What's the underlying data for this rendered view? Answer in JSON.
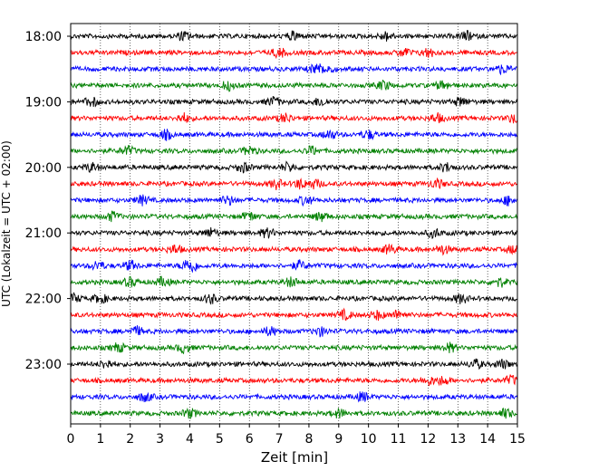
{
  "chart_data": {
    "type": "line",
    "title": "",
    "xlabel": "Zeit  [min]",
    "ylabel": "UTC (Lokalzeit = UTC + 02:00)",
    "xlim": [
      0,
      15
    ],
    "xticks": [
      0,
      1,
      2,
      3,
      4,
      5,
      6,
      7,
      8,
      9,
      10,
      11,
      12,
      13,
      14,
      15
    ],
    "ytick_labels": [
      "18:00",
      "19:00",
      "20:00",
      "21:00",
      "22:00",
      "23:00"
    ],
    "grid": "vertical dotted",
    "trace_interval_min": 15,
    "trace_colors": [
      "#000000",
      "#ff0000",
      "#0000ff",
      "#008000"
    ],
    "traces": [
      {
        "start": "18:00",
        "color": "#000000"
      },
      {
        "start": "18:15",
        "color": "#ff0000"
      },
      {
        "start": "18:30",
        "color": "#0000ff"
      },
      {
        "start": "18:45",
        "color": "#008000"
      },
      {
        "start": "19:00",
        "color": "#000000"
      },
      {
        "start": "19:15",
        "color": "#ff0000"
      },
      {
        "start": "19:30",
        "color": "#0000ff"
      },
      {
        "start": "19:45",
        "color": "#008000"
      },
      {
        "start": "20:00",
        "color": "#000000"
      },
      {
        "start": "20:15",
        "color": "#ff0000"
      },
      {
        "start": "20:30",
        "color": "#0000ff"
      },
      {
        "start": "20:45",
        "color": "#008000"
      },
      {
        "start": "21:00",
        "color": "#000000"
      },
      {
        "start": "21:15",
        "color": "#ff0000"
      },
      {
        "start": "21:30",
        "color": "#0000ff"
      },
      {
        "start": "21:45",
        "color": "#008000"
      },
      {
        "start": "22:00",
        "color": "#000000"
      },
      {
        "start": "22:15",
        "color": "#ff0000"
      },
      {
        "start": "22:30",
        "color": "#0000ff"
      },
      {
        "start": "22:45",
        "color": "#008000"
      },
      {
        "start": "23:00",
        "color": "#000000"
      },
      {
        "start": "23:15",
        "color": "#ff0000"
      },
      {
        "start": "23:30",
        "color": "#0000ff"
      },
      {
        "start": "23:45",
        "color": "#008000"
      }
    ],
    "bursts": [
      {
        "trace": "18:00",
        "x": [
          3.8,
          7.5,
          10.6,
          13.3
        ]
      },
      {
        "trace": "18:15",
        "x": [
          7.0,
          11.2,
          12.0
        ]
      },
      {
        "trace": "18:30",
        "x": [
          8.2,
          8.6,
          14.5
        ]
      },
      {
        "trace": "18:45",
        "x": [
          5.3,
          10.5,
          12.5
        ]
      },
      {
        "trace": "19:00",
        "x": [
          0.7,
          6.8,
          8.4,
          13.1
        ]
      },
      {
        "trace": "19:15",
        "x": [
          3.8,
          7.2,
          12.3,
          14.9
        ]
      },
      {
        "trace": "19:30",
        "x": [
          3.2,
          8.7,
          10.0
        ]
      },
      {
        "trace": "19:45",
        "x": [
          1.9,
          6.0,
          8.1
        ]
      },
      {
        "trace": "20:00",
        "x": [
          0.7,
          5.8,
          7.3,
          12.6
        ]
      },
      {
        "trace": "20:15",
        "x": [
          6.9,
          7.7,
          8.2,
          12.3
        ]
      },
      {
        "trace": "20:30",
        "x": [
          2.4,
          5.3,
          7.9,
          14.7
        ]
      },
      {
        "trace": "20:45",
        "x": [
          1.4,
          6.0,
          8.4
        ]
      },
      {
        "trace": "21:00",
        "x": [
          4.7,
          6.6,
          12.2
        ]
      },
      {
        "trace": "21:15",
        "x": [
          3.5,
          10.7,
          12.5,
          14.9
        ]
      },
      {
        "trace": "21:30",
        "x": [
          0.9,
          2.0,
          3.9,
          4.1,
          7.7
        ]
      },
      {
        "trace": "21:45",
        "x": [
          2.0,
          3.1,
          7.4,
          14.4
        ]
      },
      {
        "trace": "22:00",
        "x": [
          0.1,
          1.0,
          4.7,
          13.1
        ]
      },
      {
        "trace": "22:15",
        "x": [
          9.2,
          10.3,
          11.0
        ]
      },
      {
        "trace": "22:30",
        "x": [
          2.2,
          6.7,
          8.4
        ]
      },
      {
        "trace": "22:45",
        "x": [
          1.6,
          3.8,
          12.7
        ]
      },
      {
        "trace": "23:00",
        "x": [
          1.2,
          13.6,
          14.5
        ]
      },
      {
        "trace": "23:15",
        "x": [
          12.0,
          12.5,
          14.8
        ]
      },
      {
        "trace": "23:30",
        "x": [
          2.5,
          9.8
        ]
      },
      {
        "trace": "23:45",
        "x": [
          4.0,
          9.0,
          14.6
        ]
      }
    ]
  }
}
